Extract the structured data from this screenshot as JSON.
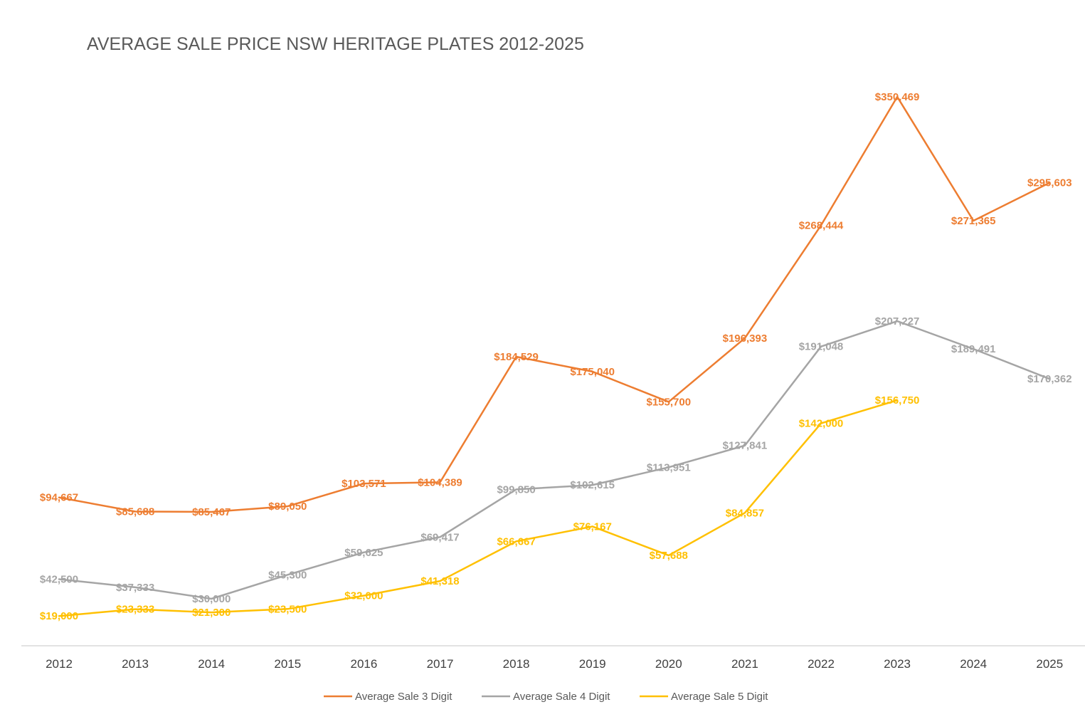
{
  "chart_data": {
    "type": "line",
    "title": "AVERAGE SALE PRICE NSW HERITAGE PLATES 2012-2025",
    "xlabel": "",
    "ylabel": "",
    "categories": [
      "2012",
      "2013",
      "2014",
      "2015",
      "2016",
      "2017",
      "2018",
      "2019",
      "2020",
      "2021",
      "2022",
      "2023",
      "2024",
      "2025"
    ],
    "ylim": [
      0,
      380000
    ],
    "grid": false,
    "legend_position": "bottom",
    "series": [
      {
        "name": "Average Sale 3 Digit",
        "color": "#ED7D31",
        "values": [
          94667,
          85688,
          85467,
          89050,
          103571,
          104389,
          184529,
          175040,
          155700,
          196393,
          268444,
          350469,
          271365,
          295603
        ],
        "labels": [
          "$94,667",
          "$85,688",
          "$85,467",
          "$89,050",
          "$103,571",
          "$104,389",
          "$184,529",
          "$175,040",
          "$155,700",
          "$196,393",
          "$268,444",
          "$350,469",
          "$271,365",
          "$295,603"
        ]
      },
      {
        "name": "Average Sale 4 Digit",
        "color": "#A5A5A5",
        "values": [
          42500,
          37333,
          30000,
          45300,
          59625,
          69417,
          99850,
          102615,
          113951,
          127841,
          191048,
          207227,
          189491,
          170362
        ],
        "labels": [
          "$42,500",
          "$37,333",
          "$30,000",
          "$45,300",
          "$59,625",
          "$69,417",
          "$99,850",
          "$102,615",
          "$113,951",
          "$127,841",
          "$191,048",
          "$207,227",
          "$189,491",
          "$170,362"
        ]
      },
      {
        "name": "Average Sale 5 Digit",
        "color": "#FFC000",
        "values": [
          19000,
          23333,
          21300,
          23500,
          32000,
          41318,
          66667,
          76167,
          57688,
          84857,
          142000,
          156750,
          null,
          null
        ],
        "labels": [
          "$19,000",
          "$23,333",
          "$21,300",
          "$23,500",
          "$32,000",
          "$41,318",
          "$66,667",
          "$76,167",
          "$57,688",
          "$84,857",
          "$142,000",
          "$156,750",
          null,
          null
        ]
      }
    ]
  },
  "axis_color": "#D9D9D9"
}
